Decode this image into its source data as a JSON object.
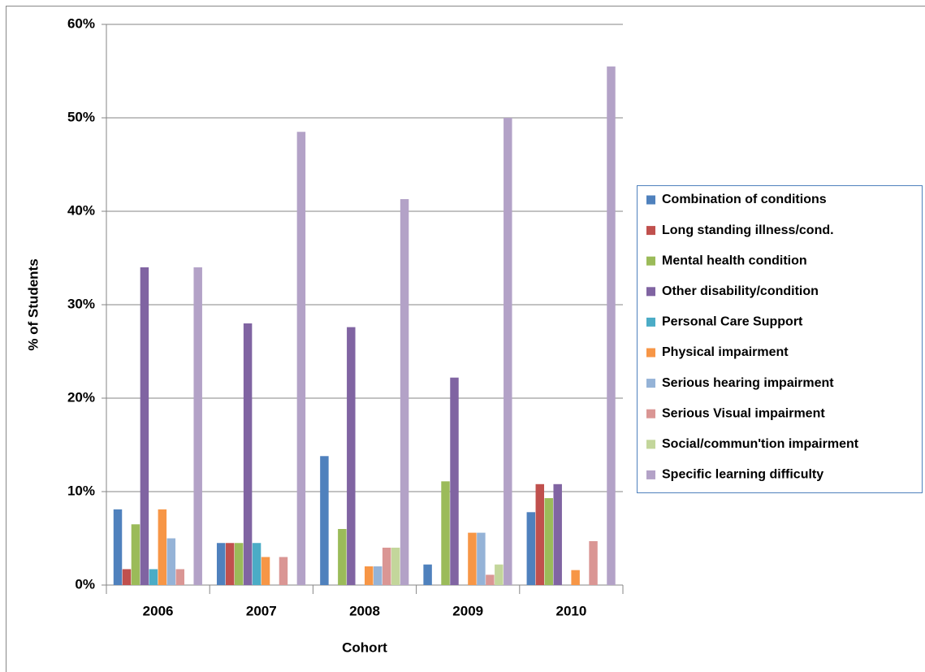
{
  "chart_data": {
    "type": "bar",
    "x_label": "Cohort",
    "y_label": "% of Students",
    "categories": [
      "2006",
      "2007",
      "2008",
      "2009",
      "2010"
    ],
    "series": [
      {
        "name": "Combination of conditions",
        "color": "#4F81BD",
        "values": [
          8.1,
          4.5,
          13.8,
          2.2,
          7.8
        ]
      },
      {
        "name": "Long standing illness/cond.",
        "color": "#C0504D",
        "values": [
          1.7,
          4.5,
          0,
          0,
          10.8
        ]
      },
      {
        "name": "Mental health condition",
        "color": "#9BBB59",
        "values": [
          6.5,
          4.5,
          6.0,
          11.1,
          9.3
        ]
      },
      {
        "name": "Other disability/condition",
        "color": "#8064A2",
        "values": [
          34,
          28,
          27.6,
          22.2,
          10.8
        ]
      },
      {
        "name": "Personal Care Support",
        "color": "#4BACC6",
        "values": [
          1.7,
          4.5,
          0,
          0,
          0
        ]
      },
      {
        "name": "Physical impairment",
        "color": "#F79646",
        "values": [
          8.1,
          3.0,
          2.0,
          5.6,
          1.6
        ]
      },
      {
        "name": "Serious hearing impairment",
        "color": "#95B3D7",
        "values": [
          5.0,
          0,
          2.0,
          5.6,
          0
        ]
      },
      {
        "name": "Serious Visual impairment",
        "color": "#DA9694",
        "values": [
          1.7,
          3.0,
          4.0,
          1.1,
          4.7
        ]
      },
      {
        "name": "Social/commun'tion impairment",
        "color": "#C3D69B",
        "values": [
          0,
          0,
          4.0,
          2.2,
          0
        ]
      },
      {
        "name": "Specific learning difficulty",
        "color": "#B3A2C7",
        "values": [
          34,
          48.5,
          41.3,
          50,
          55.5
        ]
      }
    ],
    "ylim": [
      0,
      60
    ],
    "yticks": [
      {
        "value": 0,
        "label": "0%"
      },
      {
        "value": 10,
        "label": "10%"
      },
      {
        "value": 20,
        "label": "20%"
      },
      {
        "value": 30,
        "label": "30%"
      },
      {
        "value": 40,
        "label": "40%"
      },
      {
        "value": 50,
        "label": "50%"
      },
      {
        "value": 60,
        "label": "60%"
      }
    ],
    "grid": true,
    "legend": "right"
  }
}
